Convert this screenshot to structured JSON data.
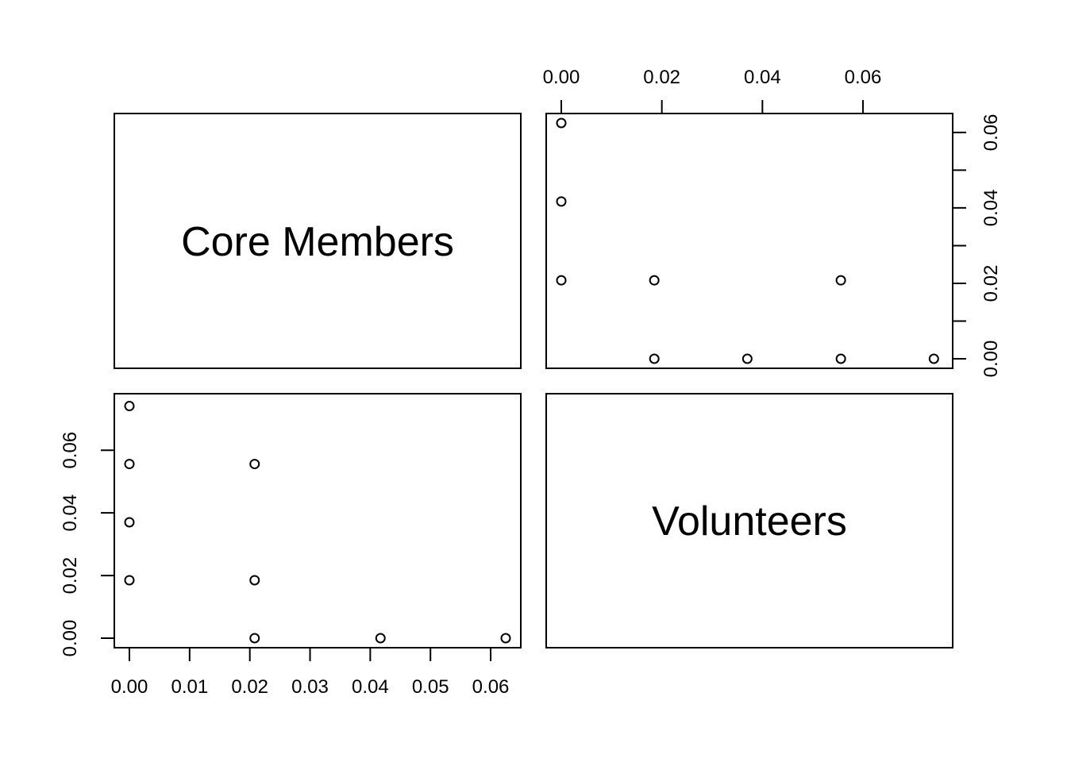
{
  "chart_data": {
    "type": "scatter",
    "variables": [
      "Core Members",
      "Volunteers"
    ],
    "panels": [
      {
        "position": "top-right",
        "x_variable": "Volunteers",
        "y_variable": "Core Members",
        "xlim": [
          0,
          0.075
        ],
        "ylim": [
          0,
          0.0625
        ],
        "x_ticks": [
          0.0,
          0.02,
          0.04,
          0.06
        ],
        "x_tick_labels": [
          "0.00",
          "0.02",
          "0.04",
          "0.06"
        ],
        "y_ticks": [
          0.0,
          0.01,
          0.02,
          0.03,
          0.04,
          0.05,
          0.06
        ],
        "y_tick_labels": [
          "0.00",
          "",
          "0.02",
          "",
          "0.04",
          "",
          "0.06"
        ],
        "x_axis_side": "top",
        "y_axis_side": "right",
        "points": [
          {
            "x": 0.0,
            "y": 0.0625
          },
          {
            "x": 0.0,
            "y": 0.0417
          },
          {
            "x": 0.0,
            "y": 0.0208
          },
          {
            "x": 0.0185,
            "y": 0.0208
          },
          {
            "x": 0.0556,
            "y": 0.0208
          },
          {
            "x": 0.0185,
            "y": 0.0
          },
          {
            "x": 0.037,
            "y": 0.0
          },
          {
            "x": 0.0556,
            "y": 0.0
          },
          {
            "x": 0.0741,
            "y": 0.0
          }
        ]
      },
      {
        "position": "bottom-left",
        "x_variable": "Core Members",
        "y_variable": "Volunteers",
        "xlim": [
          0,
          0.0625
        ],
        "ylim": [
          0,
          0.075
        ],
        "x_ticks": [
          0.0,
          0.01,
          0.02,
          0.03,
          0.04,
          0.05,
          0.06
        ],
        "x_tick_labels": [
          "0.00",
          "0.01",
          "0.02",
          "0.03",
          "0.04",
          "0.05",
          "0.06"
        ],
        "y_ticks": [
          0.0,
          0.02,
          0.04,
          0.06
        ],
        "y_tick_labels": [
          "0.00",
          "0.02",
          "0.04",
          "0.06"
        ],
        "x_axis_side": "bottom",
        "y_axis_side": "left",
        "points": [
          {
            "x": 0.0,
            "y": 0.0741
          },
          {
            "x": 0.0,
            "y": 0.0556
          },
          {
            "x": 0.0,
            "y": 0.037
          },
          {
            "x": 0.0,
            "y": 0.0185
          },
          {
            "x": 0.0208,
            "y": 0.0556
          },
          {
            "x": 0.0208,
            "y": 0.0185
          },
          {
            "x": 0.0208,
            "y": 0.0
          },
          {
            "x": 0.0417,
            "y": 0.0
          },
          {
            "x": 0.0625,
            "y": 0.0
          }
        ]
      }
    ],
    "grid": false,
    "marker": "open-circle",
    "color": "#000000"
  }
}
